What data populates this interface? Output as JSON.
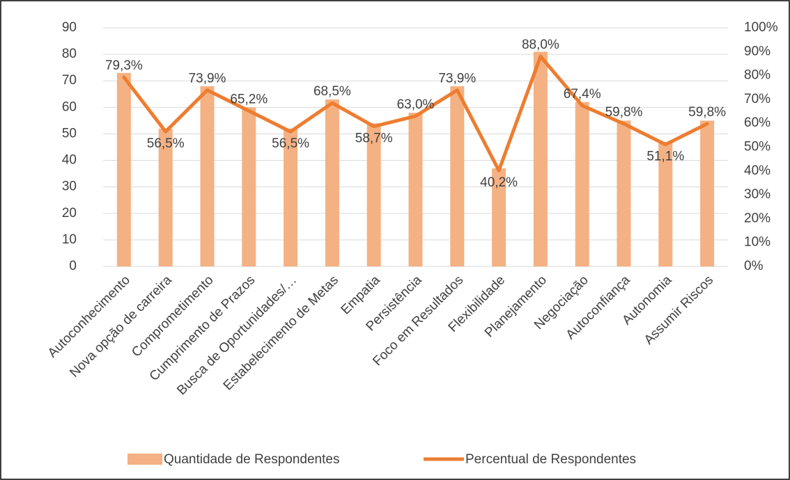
{
  "chart_data": {
    "type": "bar_line",
    "categories": [
      "Autoconhecimento",
      "Nova opção de carreira",
      "Comprometimento",
      "Cumprimento de Prazos",
      "Busca de Oportunidades/…",
      "Estabelecimento de Metas",
      "Empatia",
      "Persistência",
      "Foco em Resultados",
      "Flexibilidade",
      "Planejamento",
      "Negociação",
      "Autoconfiança",
      "Autonomia",
      "Assumir Riscos"
    ],
    "series": [
      {
        "name": "Quantidade de Respondentes",
        "type": "bar",
        "color": "#f4b183",
        "values": [
          73,
          52,
          68,
          60,
          52,
          63,
          54,
          58,
          68,
          37,
          81,
          62,
          55,
          47,
          55
        ]
      },
      {
        "name": "Percentual de Respondentes",
        "type": "line",
        "axis": "y2",
        "color": "#ed7d31",
        "values": [
          79.3,
          56.5,
          73.9,
          65.2,
          56.5,
          68.5,
          58.7,
          63.0,
          73.9,
          40.2,
          88.0,
          67.4,
          59.8,
          51.1,
          59.8
        ],
        "value_labels": [
          "79,3%",
          "56,5%",
          "73,9%",
          "65,2%",
          "56,5%",
          "68,5%",
          "58,7%",
          "63,0%",
          "73,9%",
          "40,2%",
          "88,0%",
          "67,4%",
          "59,8%",
          "51,1%",
          "59,8%"
        ]
      }
    ],
    "ylim": [
      0,
      90
    ],
    "yticks": [
      0,
      10,
      20,
      30,
      40,
      50,
      60,
      70,
      80,
      90
    ],
    "y2lim": [
      0,
      100
    ],
    "y2ticks": [
      {
        "value": 0,
        "label": "0%"
      },
      {
        "value": 10,
        "label": "10%"
      },
      {
        "value": 20,
        "label": "20%"
      },
      {
        "value": 30,
        "label": "30%"
      },
      {
        "value": 40,
        "label": "40%"
      },
      {
        "value": 50,
        "label": "50%"
      },
      {
        "value": 60,
        "label": "60%"
      },
      {
        "value": 70,
        "label": "70%"
      },
      {
        "value": 80,
        "label": "80%"
      },
      {
        "value": 90,
        "label": "90%"
      },
      {
        "value": 100,
        "label": "100%"
      }
    ],
    "grid": true,
    "legend": "bottom"
  }
}
